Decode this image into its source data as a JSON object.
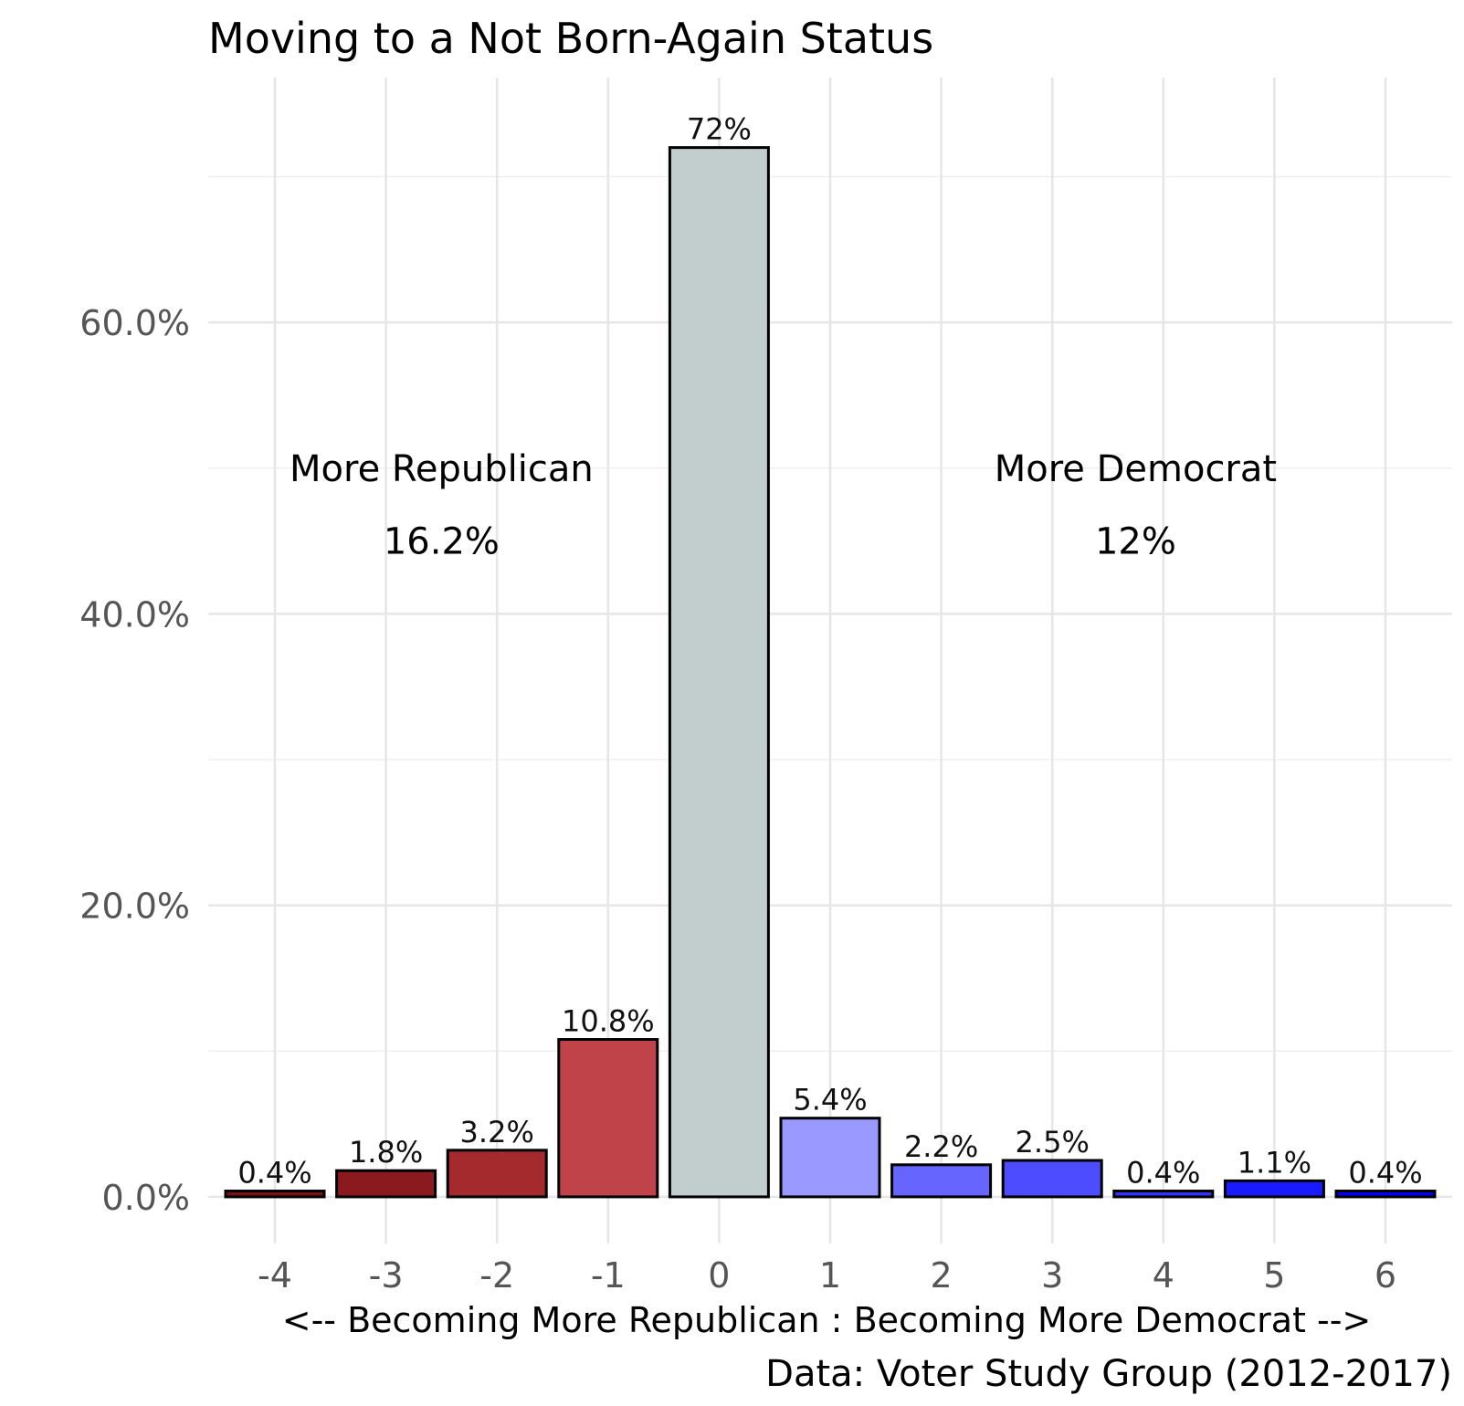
{
  "chart_data": {
    "type": "bar",
    "title": "Moving to a Not Born-Again Status",
    "xlabel": "<-- Becoming More Republican : Becoming More Democrat -->",
    "ylabel": "",
    "caption": "Data: Voter Study Group (2012-2017)",
    "categories": [
      "-4",
      "-3",
      "-2",
      "-1",
      "0",
      "1",
      "2",
      "3",
      "4",
      "5",
      "6"
    ],
    "values": [
      0.4,
      1.8,
      3.2,
      10.8,
      72.0,
      5.4,
      2.2,
      2.5,
      0.4,
      1.1,
      0.4
    ],
    "value_labels": [
      "0.4%",
      "1.8%",
      "3.2%",
      "10.8%",
      "72%",
      "5.4%",
      "2.2%",
      "2.5%",
      "0.4%",
      "1.1%",
      "0.4%"
    ],
    "colors": [
      "#7a1216",
      "#8b1a1e",
      "#a52a2e",
      "#c0434a",
      "#c2cdcd",
      "#9999ff",
      "#6666ff",
      "#4d4dff",
      "#3333ff",
      "#1a1aff",
      "#0000ff"
    ],
    "ylim": [
      -3.2,
      76.8
    ],
    "yticks": [
      0,
      20,
      40,
      60
    ],
    "ytick_labels": [
      "0.0%",
      "20.0%",
      "40.0%",
      "60.0%"
    ],
    "grid": true,
    "legend": "none",
    "annotations": [
      {
        "text": "More Republican",
        "x": -2.5,
        "y": 50
      },
      {
        "text": "16.2%",
        "x": -2.5,
        "y": 45
      },
      {
        "text": "More Democrat",
        "x": 3.75,
        "y": 50
      },
      {
        "text": "12%",
        "x": 3.75,
        "y": 45
      }
    ]
  }
}
